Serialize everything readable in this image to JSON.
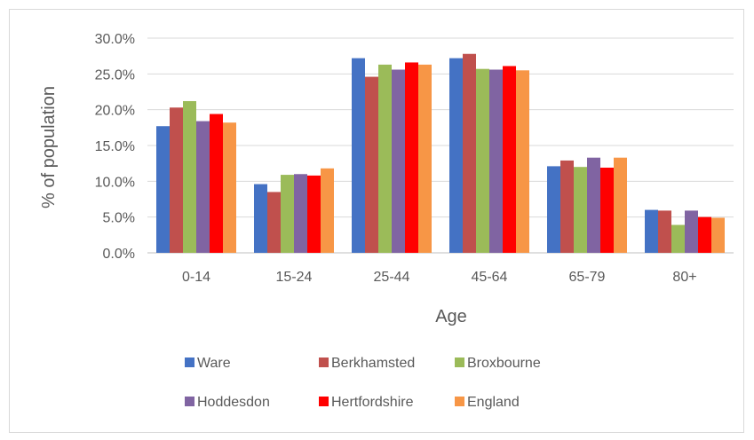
{
  "chart_data": {
    "type": "bar",
    "title": "",
    "xlabel": "Age",
    "ylabel": "% of population",
    "ylim": [
      0,
      30
    ],
    "ytick_labels": [
      "0.0%",
      "5.0%",
      "10.0%",
      "15.0%",
      "20.0%",
      "25.0%",
      "30.0%"
    ],
    "grid": "horizontal",
    "legend_position": "bottom",
    "categories": [
      "0-14",
      "15-24",
      "25-44",
      "45-64",
      "65-79",
      "80+"
    ],
    "series": [
      {
        "name": "Ware",
        "color": "#4472c4",
        "values": [
          17.7,
          9.6,
          27.2,
          27.2,
          12.1,
          6.0
        ]
      },
      {
        "name": "Berkhamsted",
        "color": "#c0504d",
        "values": [
          20.3,
          8.5,
          24.6,
          27.8,
          12.9,
          5.9
        ]
      },
      {
        "name": "Broxbourne",
        "color": "#9bbb59",
        "values": [
          21.2,
          10.9,
          26.3,
          25.7,
          12.0,
          3.9
        ]
      },
      {
        "name": "Hoddesdon",
        "color": "#8064a2",
        "values": [
          18.4,
          11.0,
          25.6,
          25.6,
          13.3,
          5.9
        ]
      },
      {
        "name": "Hertfordshire",
        "color": "#ff0000",
        "values": [
          19.4,
          10.8,
          26.6,
          26.1,
          11.9,
          5.0
        ]
      },
      {
        "name": "England",
        "color": "#f79646",
        "values": [
          18.2,
          11.8,
          26.3,
          25.5,
          13.3,
          4.9
        ]
      }
    ]
  }
}
